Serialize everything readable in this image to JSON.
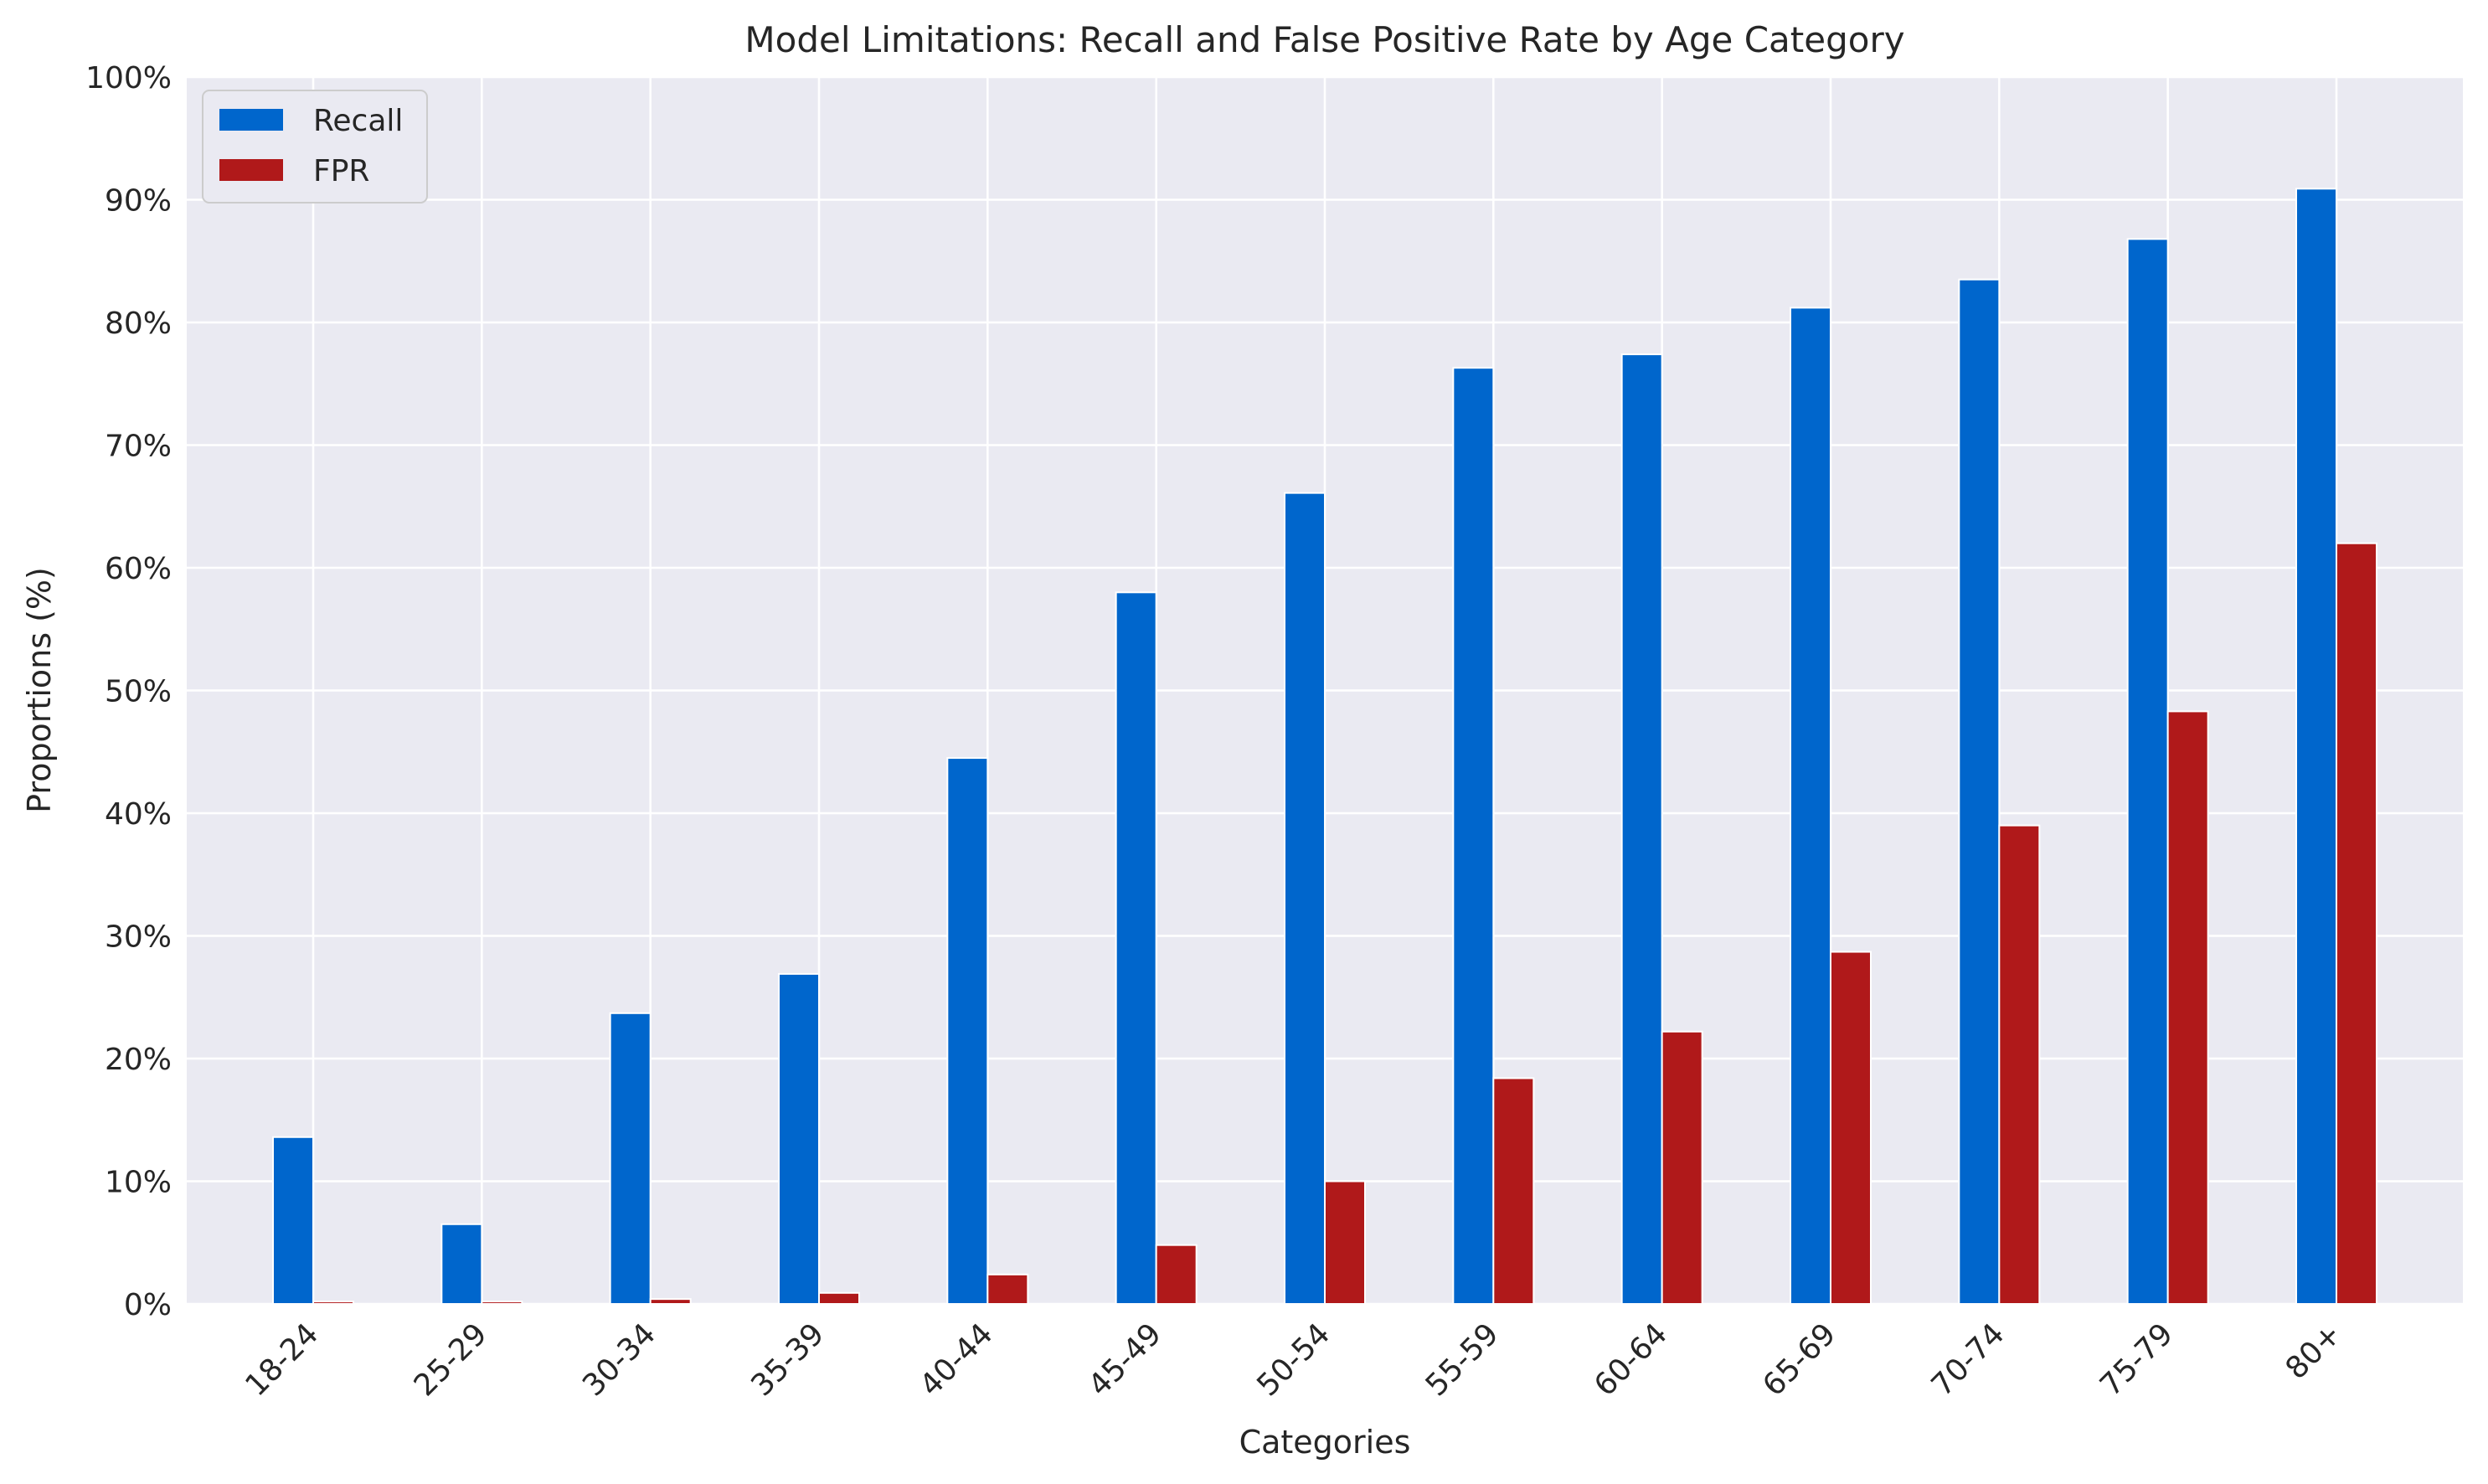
{
  "chart_data": {
    "type": "bar",
    "title": "Model Limitations: Recall and False Positive Rate by Age Category",
    "xlabel": "Categories",
    "ylabel": "Proportions (%)",
    "ylim": [
      0,
      100
    ],
    "y_ticks": [
      "0%",
      "10%",
      "20%",
      "30%",
      "40%",
      "50%",
      "60%",
      "70%",
      "80%",
      "90%",
      "100%"
    ],
    "grid": true,
    "legend_position": "top-left",
    "categories": [
      "18-24",
      "25-29",
      "30-34",
      "35-39",
      "40-44",
      "45-49",
      "50-54",
      "55-59",
      "60-64",
      "65-69",
      "70-74",
      "75-79",
      "80+"
    ],
    "series": [
      {
        "name": "Recall",
        "color": "#0066cc",
        "values": [
          13.6,
          6.5,
          23.7,
          26.9,
          44.5,
          58.0,
          66.1,
          76.3,
          77.4,
          81.2,
          83.5,
          86.8,
          90.9
        ]
      },
      {
        "name": "FPR",
        "color": "#b0191a",
        "values": [
          0.2,
          0.2,
          0.4,
          0.9,
          2.4,
          4.8,
          10.0,
          18.4,
          22.2,
          28.7,
          39.0,
          48.3,
          62.0
        ]
      }
    ]
  }
}
